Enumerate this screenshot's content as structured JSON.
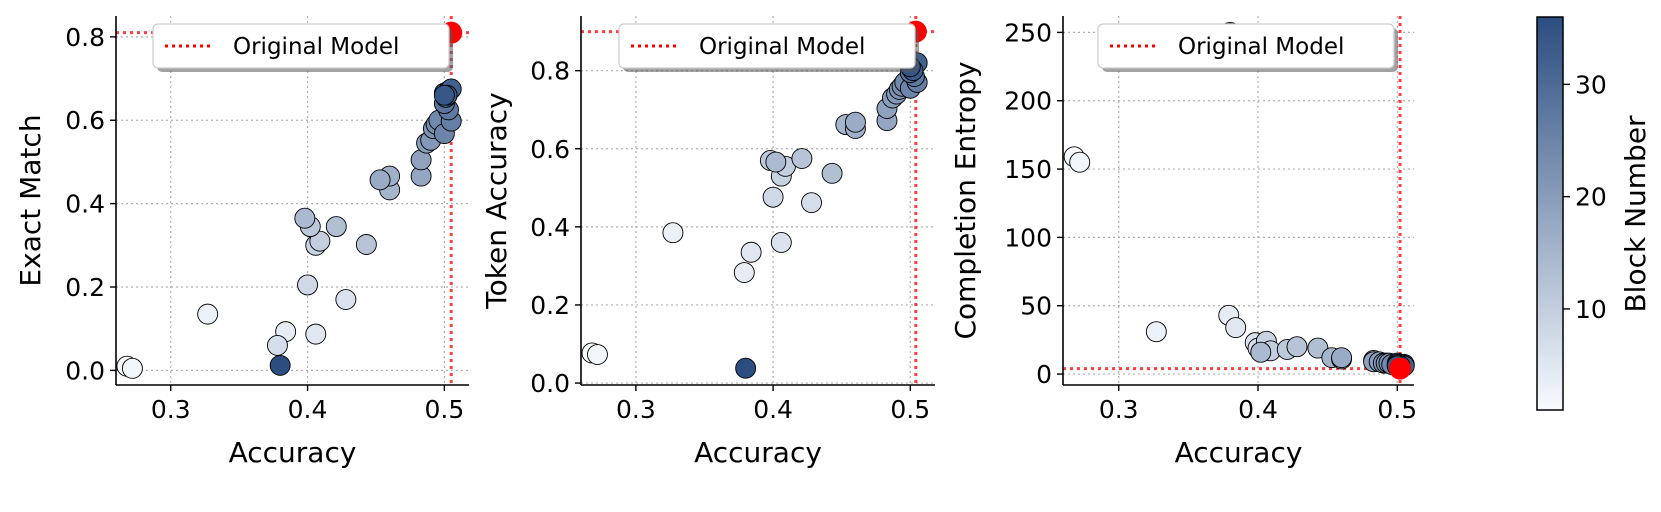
{
  "colors": {
    "reference": "#ff0000",
    "cmap_low": "#f7fbff",
    "cmap_high": "#2b4d80",
    "grid": "#b0b0b0",
    "marker_edge": "#000000"
  },
  "legend": {
    "label": "Original Model",
    "placement": "top-right"
  },
  "colorbar": {
    "label": "Block Number",
    "ticks": [
      "10",
      "20",
      "30"
    ],
    "range": [
      1,
      36
    ]
  },
  "chart_data": [
    {
      "type": "scatter",
      "xlabel": "Accuracy",
      "ylabel": "Exact Match",
      "xlim": [
        0.26,
        0.518
      ],
      "ylim": [
        -0.035,
        0.85
      ],
      "xticks": [
        0.3,
        0.4,
        0.5
      ],
      "xtick_labels": [
        "0.3",
        "0.4",
        "0.5"
      ],
      "yticks": [
        0.0,
        0.2,
        0.4,
        0.6,
        0.8
      ],
      "ytick_labels": [
        "0.0",
        "0.2",
        "0.4",
        "0.6",
        "0.8"
      ],
      "grid": true,
      "reference": {
        "x": 0.505,
        "y": 0.81
      },
      "points": [
        {
          "x": 0.268,
          "y": 0.01,
          "block": 1
        },
        {
          "x": 0.272,
          "y": 0.005,
          "block": 2
        },
        {
          "x": 0.327,
          "y": 0.135,
          "block": 3
        },
        {
          "x": 0.384,
          "y": 0.093,
          "block": 4
        },
        {
          "x": 0.406,
          "y": 0.087,
          "block": 5
        },
        {
          "x": 0.428,
          "y": 0.17,
          "block": 6
        },
        {
          "x": 0.378,
          "y": 0.06,
          "block": 7
        },
        {
          "x": 0.4,
          "y": 0.205,
          "block": 8
        },
        {
          "x": 0.406,
          "y": 0.3,
          "block": 9
        },
        {
          "x": 0.409,
          "y": 0.31,
          "block": 10
        },
        {
          "x": 0.402,
          "y": 0.345,
          "block": 11
        },
        {
          "x": 0.443,
          "y": 0.302,
          "block": 12
        },
        {
          "x": 0.421,
          "y": 0.345,
          "block": 13
        },
        {
          "x": 0.398,
          "y": 0.365,
          "block": 14
        },
        {
          "x": 0.46,
          "y": 0.433,
          "block": 15
        },
        {
          "x": 0.46,
          "y": 0.466,
          "block": 16
        },
        {
          "x": 0.453,
          "y": 0.457,
          "block": 17
        },
        {
          "x": 0.483,
          "y": 0.466,
          "block": 18
        },
        {
          "x": 0.483,
          "y": 0.505,
          "block": 19
        },
        {
          "x": 0.487,
          "y": 0.545,
          "block": 20
        },
        {
          "x": 0.49,
          "y": 0.552,
          "block": 21
        },
        {
          "x": 0.492,
          "y": 0.58,
          "block": 22
        },
        {
          "x": 0.494,
          "y": 0.59,
          "block": 23
        },
        {
          "x": 0.496,
          "y": 0.6,
          "block": 24
        },
        {
          "x": 0.5,
          "y": 0.568,
          "block": 25
        },
        {
          "x": 0.505,
          "y": 0.598,
          "block": 26
        },
        {
          "x": 0.503,
          "y": 0.625,
          "block": 27
        },
        {
          "x": 0.5,
          "y": 0.64,
          "block": 28
        },
        {
          "x": 0.501,
          "y": 0.655,
          "block": 29
        },
        {
          "x": 0.5,
          "y": 0.665,
          "block": 30
        },
        {
          "x": 0.503,
          "y": 0.67,
          "block": 31
        },
        {
          "x": 0.505,
          "y": 0.675,
          "block": 32
        },
        {
          "x": 0.502,
          "y": 0.66,
          "block": 33
        },
        {
          "x": 0.5,
          "y": 0.66,
          "block": 34
        },
        {
          "x": 0.38,
          "y": 0.012,
          "block": 36
        }
      ]
    },
    {
      "type": "scatter",
      "xlabel": "Accuracy",
      "ylabel": "Token Accuracy",
      "xlim": [
        0.26,
        0.518
      ],
      "ylim": [
        -0.005,
        0.94
      ],
      "xticks": [
        0.3,
        0.4,
        0.5
      ],
      "xtick_labels": [
        "0.3",
        "0.4",
        "0.5"
      ],
      "yticks": [
        0.0,
        0.2,
        0.4,
        0.6,
        0.8
      ],
      "ytick_labels": [
        "0.0",
        "0.2",
        "0.4",
        "0.6",
        "0.8"
      ],
      "grid": true,
      "reference": {
        "x": 0.504,
        "y": 0.9
      },
      "points": [
        {
          "x": 0.268,
          "y": 0.077,
          "block": 1
        },
        {
          "x": 0.272,
          "y": 0.073,
          "block": 2
        },
        {
          "x": 0.327,
          "y": 0.385,
          "block": 3
        },
        {
          "x": 0.379,
          "y": 0.283,
          "block": 4
        },
        {
          "x": 0.384,
          "y": 0.335,
          "block": 5
        },
        {
          "x": 0.406,
          "y": 0.36,
          "block": 6
        },
        {
          "x": 0.428,
          "y": 0.462,
          "block": 7
        },
        {
          "x": 0.4,
          "y": 0.476,
          "block": 8
        },
        {
          "x": 0.406,
          "y": 0.53,
          "block": 9
        },
        {
          "x": 0.409,
          "y": 0.555,
          "block": 10
        },
        {
          "x": 0.398,
          "y": 0.57,
          "block": 11
        },
        {
          "x": 0.421,
          "y": 0.575,
          "block": 12
        },
        {
          "x": 0.443,
          "y": 0.537,
          "block": 13
        },
        {
          "x": 0.402,
          "y": 0.566,
          "block": 14
        },
        {
          "x": 0.453,
          "y": 0.662,
          "block": 15
        },
        {
          "x": 0.46,
          "y": 0.652,
          "block": 16
        },
        {
          "x": 0.46,
          "y": 0.668,
          "block": 17
        },
        {
          "x": 0.483,
          "y": 0.672,
          "block": 18
        },
        {
          "x": 0.483,
          "y": 0.703,
          "block": 19
        },
        {
          "x": 0.487,
          "y": 0.73,
          "block": 20
        },
        {
          "x": 0.49,
          "y": 0.74,
          "block": 21
        },
        {
          "x": 0.492,
          "y": 0.752,
          "block": 22
        },
        {
          "x": 0.494,
          "y": 0.76,
          "block": 23
        },
        {
          "x": 0.496,
          "y": 0.77,
          "block": 24
        },
        {
          "x": 0.5,
          "y": 0.755,
          "block": 25
        },
        {
          "x": 0.505,
          "y": 0.77,
          "block": 26
        },
        {
          "x": 0.503,
          "y": 0.785,
          "block": 27
        },
        {
          "x": 0.5,
          "y": 0.795,
          "block": 28
        },
        {
          "x": 0.501,
          "y": 0.805,
          "block": 29
        },
        {
          "x": 0.5,
          "y": 0.812,
          "block": 30
        },
        {
          "x": 0.503,
          "y": 0.815,
          "block": 31
        },
        {
          "x": 0.505,
          "y": 0.82,
          "block": 32
        },
        {
          "x": 0.502,
          "y": 0.8,
          "block": 33
        },
        {
          "x": 0.5,
          "y": 0.81,
          "block": 34
        },
        {
          "x": 0.38,
          "y": 0.038,
          "block": 36
        }
      ]
    },
    {
      "type": "scatter",
      "xlabel": "Accuracy",
      "ylabel": "Completion Entropy",
      "xlim": [
        0.26,
        0.512
      ],
      "ylim": [
        -8,
        262
      ],
      "xticks": [
        0.3,
        0.4,
        0.5
      ],
      "xtick_labels": [
        "0.3",
        "0.4",
        "0.5"
      ],
      "yticks": [
        0,
        50,
        100,
        150,
        200,
        250
      ],
      "ytick_labels": [
        "0",
        "50",
        "100",
        "150",
        "200",
        "250"
      ],
      "grid": true,
      "reference": {
        "x": 0.502,
        "y": 4
      },
      "points": [
        {
          "x": 0.268,
          "y": 159,
          "block": 1
        },
        {
          "x": 0.272,
          "y": 155,
          "block": 2
        },
        {
          "x": 0.327,
          "y": 31,
          "block": 3
        },
        {
          "x": 0.379,
          "y": 43,
          "block": 4
        },
        {
          "x": 0.384,
          "y": 34,
          "block": 5
        },
        {
          "x": 0.398,
          "y": 23,
          "block": 6
        },
        {
          "x": 0.4,
          "y": 19,
          "block": 7
        },
        {
          "x": 0.406,
          "y": 21,
          "block": 8
        },
        {
          "x": 0.406,
          "y": 24,
          "block": 9
        },
        {
          "x": 0.409,
          "y": 17,
          "block": 10
        },
        {
          "x": 0.421,
          "y": 18,
          "block": 11
        },
        {
          "x": 0.428,
          "y": 20,
          "block": 12
        },
        {
          "x": 0.443,
          "y": 19,
          "block": 13
        },
        {
          "x": 0.402,
          "y": 16,
          "block": 14
        },
        {
          "x": 0.453,
          "y": 12,
          "block": 15
        },
        {
          "x": 0.46,
          "y": 11,
          "block": 16
        },
        {
          "x": 0.46,
          "y": 12,
          "block": 17
        },
        {
          "x": 0.483,
          "y": 10,
          "block": 18
        },
        {
          "x": 0.483,
          "y": 9,
          "block": 19
        },
        {
          "x": 0.487,
          "y": 9,
          "block": 20
        },
        {
          "x": 0.49,
          "y": 8,
          "block": 21
        },
        {
          "x": 0.492,
          "y": 8,
          "block": 22
        },
        {
          "x": 0.494,
          "y": 8,
          "block": 23
        },
        {
          "x": 0.496,
          "y": 7,
          "block": 24
        },
        {
          "x": 0.5,
          "y": 8,
          "block": 25
        },
        {
          "x": 0.505,
          "y": 7,
          "block": 26
        },
        {
          "x": 0.503,
          "y": 7,
          "block": 27
        },
        {
          "x": 0.5,
          "y": 7,
          "block": 28
        },
        {
          "x": 0.501,
          "y": 6,
          "block": 29
        },
        {
          "x": 0.5,
          "y": 6,
          "block": 30
        },
        {
          "x": 0.503,
          "y": 6,
          "block": 31
        },
        {
          "x": 0.505,
          "y": 6,
          "block": 32
        },
        {
          "x": 0.502,
          "y": 6,
          "block": 33
        },
        {
          "x": 0.5,
          "y": 6,
          "block": 34
        },
        {
          "x": 0.38,
          "y": 250,
          "block": 36
        }
      ]
    }
  ]
}
